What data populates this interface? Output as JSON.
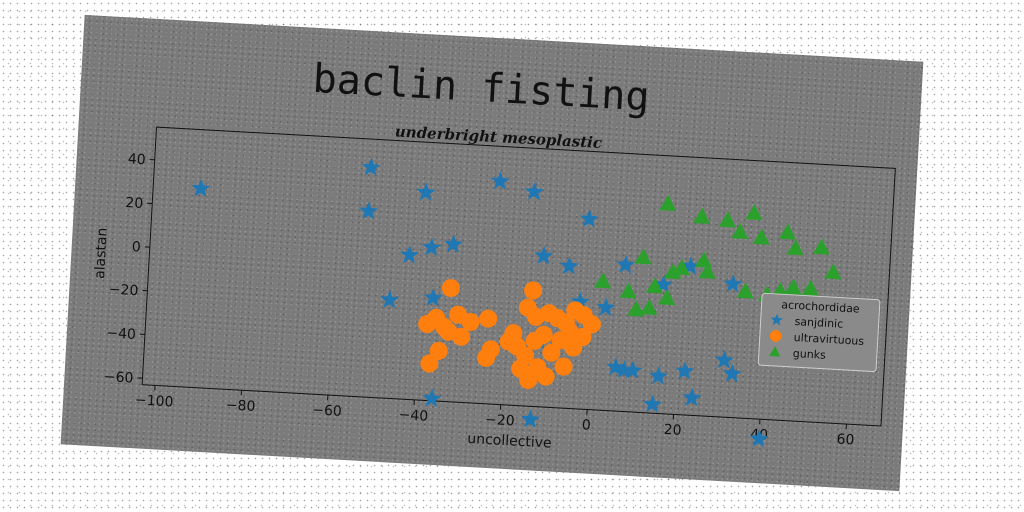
{
  "chart_data": {
    "type": "scatter",
    "title": "baclin fisting",
    "subtitle": "underbright mesoplastic",
    "xlabel": "uncollective",
    "ylabel": "alastan",
    "xlim": [
      -103,
      68
    ],
    "ylim": [
      -63,
      55
    ],
    "xticks": [
      -100,
      -80,
      -60,
      -40,
      -20,
      0,
      20,
      40,
      60
    ],
    "yticks": [
      -60,
      -40,
      -20,
      0,
      20,
      40
    ],
    "grid": false,
    "legend": {
      "title": "acrochordidae",
      "position": "center-right"
    },
    "series": [
      {
        "name": "sanjdinic",
        "marker": "star",
        "color": "#1f77b4",
        "points": [
          [
            -92,
            28
          ],
          [
            -53,
            42
          ],
          [
            -53,
            22
          ],
          [
            -40,
            32
          ],
          [
            -43,
            3
          ],
          [
            -38,
            7
          ],
          [
            -33,
            9
          ],
          [
            -23,
            39
          ],
          [
            -15,
            35
          ],
          [
            -2,
            24
          ],
          [
            -12,
            6
          ],
          [
            -6,
            2
          ],
          [
            -47,
            -18
          ],
          [
            -37,
            -16
          ],
          [
            -36,
            -62
          ],
          [
            -13,
            -69
          ],
          [
            -12,
            -33
          ],
          [
            -3,
            -14
          ],
          [
            3,
            -16
          ],
          [
            7,
            4
          ],
          [
            16,
            -4
          ],
          [
            22,
            5
          ],
          [
            32,
            -2
          ],
          [
            6,
            -43
          ],
          [
            8,
            -44
          ],
          [
            10,
            -44
          ],
          [
            16,
            -46
          ],
          [
            22,
            -43
          ],
          [
            24,
            -55
          ],
          [
            15,
            -59
          ],
          [
            31,
            -37
          ],
          [
            33,
            -43
          ],
          [
            40,
            -72
          ]
        ]
      },
      {
        "name": "ultravirtuous",
        "marker": "circle",
        "color": "#ff7f0e",
        "points": [
          [
            -33,
            -11
          ],
          [
            -36,
            -25
          ],
          [
            -34,
            -29
          ],
          [
            -31,
            -23
          ],
          [
            -28,
            -26
          ],
          [
            -33,
            -31
          ],
          [
            -38,
            -28
          ],
          [
            -30,
            -33
          ],
          [
            -35,
            -40
          ],
          [
            -37,
            -46
          ],
          [
            -24,
            -24
          ],
          [
            -23,
            -38
          ],
          [
            -24,
            -42
          ],
          [
            -14,
            -10
          ],
          [
            -15,
            -18
          ],
          [
            -13,
            -22
          ],
          [
            -10,
            -20
          ],
          [
            -8,
            -22
          ],
          [
            -6,
            -24
          ],
          [
            -4,
            -18
          ],
          [
            -2,
            -20
          ],
          [
            -18,
            -30
          ],
          [
            -17,
            -36
          ],
          [
            -13,
            -33
          ],
          [
            -15,
            -40
          ],
          [
            -12,
            -45
          ],
          [
            -10,
            -49
          ],
          [
            -14,
            -51
          ],
          [
            -9,
            -38
          ],
          [
            -6,
            -44
          ],
          [
            -4,
            -35
          ],
          [
            -2,
            -30
          ],
          [
            -5,
            -28
          ],
          [
            0,
            -24
          ],
          [
            -11,
            -30
          ],
          [
            -7,
            -32
          ],
          [
            -19,
            -34
          ],
          [
            -16,
            -46
          ]
        ]
      },
      {
        "name": "gunks",
        "marker": "triangle",
        "color": "#2ca02c",
        "points": [
          [
            16,
            33
          ],
          [
            24,
            28
          ],
          [
            30,
            27
          ],
          [
            33,
            22
          ],
          [
            36,
            31
          ],
          [
            38,
            20
          ],
          [
            44,
            23
          ],
          [
            46,
            16
          ],
          [
            52,
            17
          ],
          [
            11,
            8
          ],
          [
            14,
            -5
          ],
          [
            18,
            2
          ],
          [
            20,
            4
          ],
          [
            25,
            8
          ],
          [
            26,
            3
          ],
          [
            35,
            -5
          ],
          [
            40,
            -6
          ],
          [
            43,
            -4
          ],
          [
            46,
            -2
          ],
          [
            50,
            -2
          ],
          [
            55,
            6
          ],
          [
            2,
            -4
          ],
          [
            8,
            -8
          ],
          [
            10,
            -16
          ],
          [
            13,
            -15
          ],
          [
            17,
            -10
          ]
        ]
      }
    ]
  }
}
